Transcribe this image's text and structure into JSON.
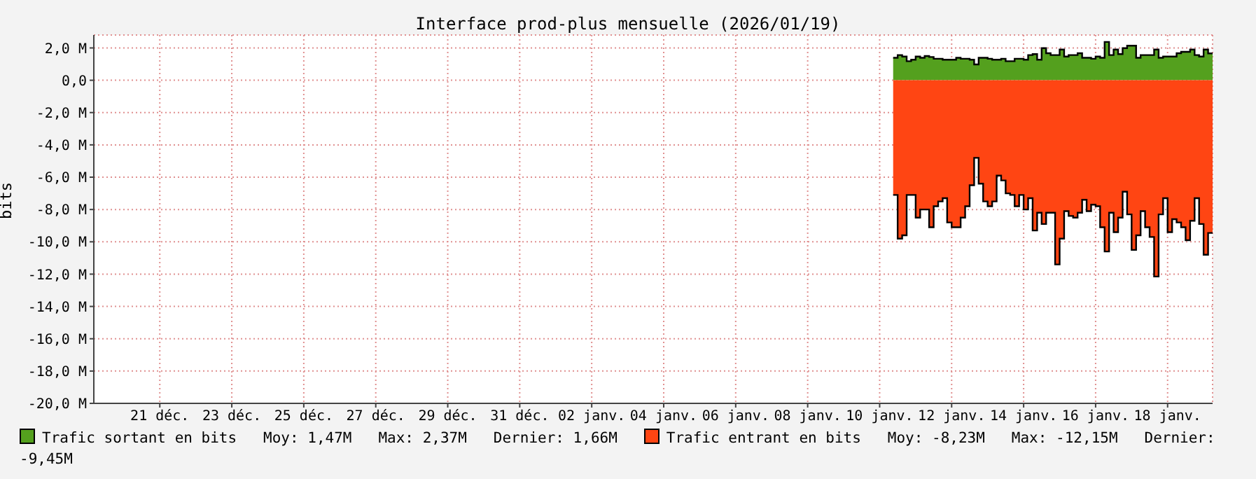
{
  "chart_data": {
    "type": "area",
    "title": "Interface prod-plus mensuelle (2026/01/19)",
    "ylabel": "bits",
    "x": [
      "2026-01-10T09:00",
      "2026-01-10T12:00",
      "2026-01-10T15:00",
      "2026-01-10T18:00",
      "2026-01-10T21:00",
      "2026-01-11T00:00",
      "2026-01-11T03:00",
      "2026-01-11T06:00",
      "2026-01-11T09:00",
      "2026-01-11T12:00",
      "2026-01-11T15:00",
      "2026-01-11T18:00",
      "2026-01-11T21:00",
      "2026-01-12T00:00",
      "2026-01-12T03:00",
      "2026-01-12T06:00",
      "2026-01-12T09:00",
      "2026-01-12T12:00",
      "2026-01-12T15:00",
      "2026-01-12T18:00",
      "2026-01-12T21:00",
      "2026-01-13T00:00",
      "2026-01-13T03:00",
      "2026-01-13T06:00",
      "2026-01-13T09:00",
      "2026-01-13T12:00",
      "2026-01-13T15:00",
      "2026-01-13T18:00",
      "2026-01-13T21:00",
      "2026-01-14T00:00",
      "2026-01-14T03:00",
      "2026-01-14T06:00",
      "2026-01-14T09:00",
      "2026-01-14T12:00",
      "2026-01-14T15:00",
      "2026-01-14T18:00",
      "2026-01-14T21:00",
      "2026-01-15T00:00",
      "2026-01-15T03:00",
      "2026-01-15T06:00",
      "2026-01-15T09:00",
      "2026-01-15T12:00",
      "2026-01-15T15:00",
      "2026-01-15T18:00",
      "2026-01-15T21:00",
      "2026-01-16T00:00",
      "2026-01-16T03:00",
      "2026-01-16T06:00",
      "2026-01-16T09:00",
      "2026-01-16T12:00",
      "2026-01-16T15:00",
      "2026-01-16T18:00",
      "2026-01-16T21:00",
      "2026-01-17T00:00",
      "2026-01-17T03:00",
      "2026-01-17T06:00",
      "2026-01-17T09:00",
      "2026-01-17T12:00",
      "2026-01-17T15:00",
      "2026-01-17T18:00",
      "2026-01-17T21:00",
      "2026-01-18T00:00",
      "2026-01-18T03:00",
      "2026-01-18T06:00",
      "2026-01-18T09:00",
      "2026-01-18T12:00",
      "2026-01-18T15:00",
      "2026-01-18T18:00",
      "2026-01-18T21:00",
      "2026-01-19T00:00",
      "2026-01-19T03:00",
      "2026-01-19T06:00"
    ],
    "series": [
      {
        "name": "Trafic sortant en bits",
        "color": "#54a01e",
        "values": [
          1.39,
          1.56,
          1.47,
          1.18,
          1.27,
          1.47,
          1.39,
          1.5,
          1.44,
          1.33,
          1.33,
          1.27,
          1.27,
          1.27,
          1.39,
          1.33,
          1.33,
          1.27,
          0.98,
          1.39,
          1.39,
          1.33,
          1.27,
          1.27,
          1.33,
          1.18,
          1.18,
          1.33,
          1.33,
          1.27,
          1.56,
          1.62,
          1.27,
          1.99,
          1.67,
          1.56,
          1.56,
          1.9,
          1.47,
          1.56,
          1.56,
          1.67,
          1.39,
          1.39,
          1.33,
          1.47,
          1.39,
          2.37,
          1.56,
          1.9,
          1.62,
          1.99,
          2.14,
          2.14,
          1.39,
          1.56,
          1.56,
          1.56,
          1.9,
          1.39,
          1.47,
          1.47,
          1.47,
          1.67,
          1.76,
          1.76,
          1.9,
          1.56,
          1.47,
          1.9,
          1.66,
          1.66
        ]
      },
      {
        "name": "Trafic entrant en bits",
        "color": "#ff4513",
        "values": [
          -7.1,
          -9.8,
          -9.6,
          -7.1,
          -7.1,
          -8.5,
          -8.0,
          -8.0,
          -9.1,
          -7.8,
          -7.5,
          -7.3,
          -8.8,
          -9.1,
          -9.1,
          -8.5,
          -7.8,
          -6.5,
          -4.8,
          -6.4,
          -7.5,
          -7.8,
          -7.5,
          -5.9,
          -6.2,
          -7.0,
          -7.1,
          -7.8,
          -7.1,
          -8.0,
          -7.3,
          -9.3,
          -8.2,
          -8.9,
          -8.2,
          -8.2,
          -11.4,
          -9.8,
          -8.1,
          -8.4,
          -8.5,
          -8.2,
          -7.4,
          -8.1,
          -7.7,
          -7.8,
          -9.1,
          -10.6,
          -8.2,
          -9.4,
          -8.5,
          -6.9,
          -8.3,
          -10.5,
          -9.6,
          -8.1,
          -9.1,
          -9.7,
          -12.15,
          -8.3,
          -7.3,
          -9.4,
          -8.6,
          -8.8,
          -9.1,
          -9.9,
          -8.7,
          -7.3,
          -8.9,
          -10.8,
          -9.45,
          -9.45
        ]
      }
    ],
    "annotations": [
      "Moy: 1,47M   Max: 2,37M   Dernier: 1,66M",
      "Moy: -8,23M   Max: -12,15M   Dernier: -9,45M"
    ],
    "xlim": [
      "2025-12-19T04:00",
      "2026-01-19T06:00"
    ],
    "xticks": [
      {
        "value": "2025-12-21",
        "label": "21 déc."
      },
      {
        "value": "2025-12-23",
        "label": "23 déc."
      },
      {
        "value": "2025-12-25",
        "label": "25 déc."
      },
      {
        "value": "2025-12-27",
        "label": "27 déc."
      },
      {
        "value": "2025-12-29",
        "label": "29 déc."
      },
      {
        "value": "2025-12-31",
        "label": "31 déc."
      },
      {
        "value": "2026-01-02",
        "label": "02 janv."
      },
      {
        "value": "2026-01-04",
        "label": "04 janv."
      },
      {
        "value": "2026-01-06",
        "label": "06 janv."
      },
      {
        "value": "2026-01-08",
        "label": "08 janv."
      },
      {
        "value": "2026-01-10",
        "label": "10 janv."
      },
      {
        "value": "2026-01-12",
        "label": "12 janv."
      },
      {
        "value": "2026-01-14",
        "label": "14 janv."
      },
      {
        "value": "2026-01-16",
        "label": "16 janv."
      },
      {
        "value": "2026-01-18",
        "label": "18 janv."
      }
    ],
    "ylim": [
      -20,
      2.8
    ],
    "yticks": [
      {
        "value": 2,
        "label": "2,0 M"
      },
      {
        "value": 0,
        "label": "0,0"
      },
      {
        "value": -2,
        "label": "-2,0 M"
      },
      {
        "value": -4,
        "label": "-4,0 M"
      },
      {
        "value": -6,
        "label": "-6,0 M"
      },
      {
        "value": -8,
        "label": "-8,0 M"
      },
      {
        "value": -10,
        "label": "-10,0 M"
      },
      {
        "value": -12,
        "label": "-12,0 M"
      },
      {
        "value": -14,
        "label": "-14,0 M"
      },
      {
        "value": -16,
        "label": "-16,0 M"
      },
      {
        "value": -18,
        "label": "-18,0 M"
      },
      {
        "value": -20,
        "label": "-20,0 M"
      }
    ],
    "grid": true,
    "legend": "bottom"
  }
}
